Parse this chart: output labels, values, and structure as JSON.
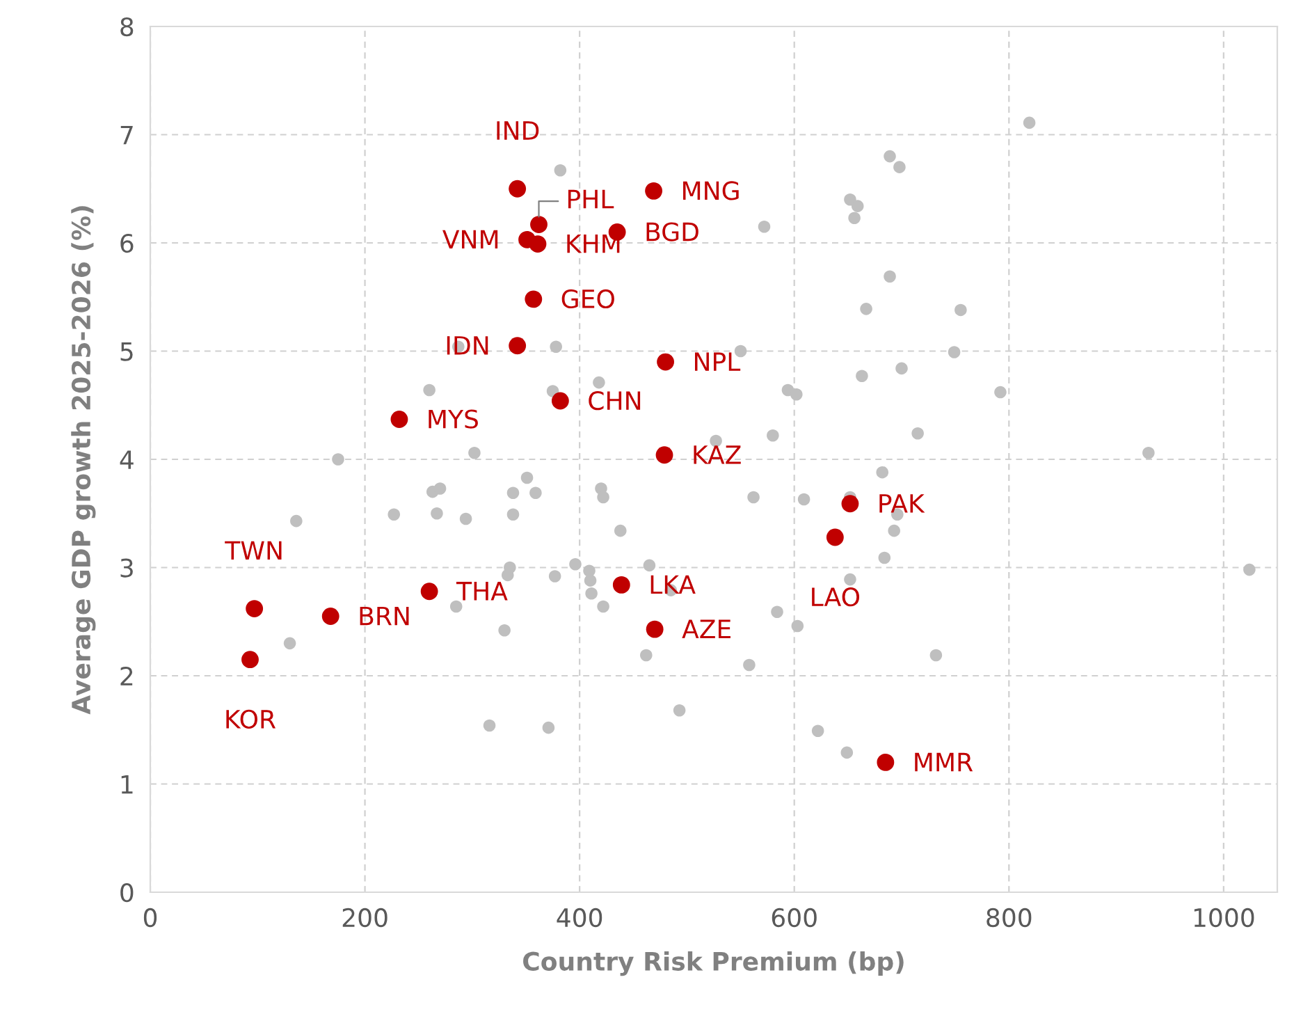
{
  "chart_data": {
    "type": "scatter",
    "xlabel": "Country Risk Premium (bp)",
    "ylabel": "Average GDP growth 2025-2026 (%)",
    "xlim": [
      0,
      1050
    ],
    "ylim": [
      0,
      8
    ],
    "xticks": [
      0,
      200,
      400,
      600,
      800,
      1000
    ],
    "yticks": [
      0,
      1,
      2,
      3,
      4,
      5,
      6,
      7,
      8
    ],
    "grid": true,
    "marker": "circle",
    "legend": false,
    "series": [
      {
        "color": "#bfbfbf",
        "x": [
          382,
          287,
          378,
          260,
          418,
          375,
          302,
          175,
          136,
          227,
          263,
          270,
          267,
          294,
          338,
          351,
          359,
          338,
          420,
          422,
          438,
          396,
          335,
          333,
          377,
          409,
          410,
          411,
          422,
          465,
          485,
          285,
          330,
          130,
          462,
          316,
          371,
          493,
          819,
          689,
          698,
          652,
          659,
          656,
          572,
          689,
          667,
          755,
          550,
          749,
          700,
          663,
          594,
          602,
          792,
          715,
          580,
          527,
          930,
          682,
          562,
          609,
          652,
          696,
          693,
          684,
          652,
          1024,
          584,
          603,
          732,
          558,
          622,
          649
        ],
        "values": [
          6.67,
          5.04,
          5.04,
          4.64,
          4.71,
          4.63,
          4.06,
          4.0,
          3.43,
          3.49,
          3.7,
          3.73,
          3.5,
          3.45,
          3.69,
          3.83,
          3.69,
          3.49,
          3.73,
          3.65,
          3.34,
          3.03,
          3.0,
          2.93,
          2.92,
          2.97,
          2.88,
          2.76,
          2.64,
          3.02,
          2.79,
          2.64,
          2.42,
          2.3,
          2.19,
          1.54,
          1.52,
          1.68,
          7.11,
          6.8,
          6.7,
          6.4,
          6.34,
          6.23,
          6.15,
          5.69,
          5.39,
          5.38,
          5.0,
          4.99,
          4.84,
          4.77,
          4.64,
          4.6,
          4.62,
          4.24,
          4.22,
          4.17,
          4.06,
          3.88,
          3.65,
          3.63,
          3.65,
          3.49,
          3.34,
          3.09,
          2.89,
          2.98,
          2.59,
          2.46,
          2.19,
          2.1,
          1.49,
          1.29
        ]
      },
      {
        "color": "#c00000",
        "x": [
          342,
          362,
          351,
          361,
          435,
          469,
          357,
          342,
          480,
          382,
          232,
          479,
          97,
          93,
          168,
          260,
          439,
          470,
          652,
          638,
          685
        ],
        "values": [
          6.5,
          6.17,
          6.03,
          5.99,
          6.1,
          6.48,
          5.48,
          5.05,
          4.9,
          4.54,
          4.37,
          4.04,
          2.62,
          2.15,
          2.55,
          2.78,
          2.84,
          2.43,
          3.59,
          3.28,
          1.2
        ]
      }
    ],
    "annotations": [
      {
        "text": "IND",
        "x": 342,
        "y": 6.5
      },
      {
        "text": "PHL",
        "x": 362,
        "y": 6.17
      },
      {
        "text": "VNM",
        "x": 351,
        "y": 6.03
      },
      {
        "text": "KHM",
        "x": 361,
        "y": 5.99
      },
      {
        "text": "BGD",
        "x": 435,
        "y": 6.1
      },
      {
        "text": "MNG",
        "x": 469,
        "y": 6.48
      },
      {
        "text": "GEO",
        "x": 357,
        "y": 5.48
      },
      {
        "text": "IDN",
        "x": 342,
        "y": 5.05
      },
      {
        "text": "NPL",
        "x": 480,
        "y": 4.9
      },
      {
        "text": "CHN",
        "x": 382,
        "y": 4.54
      },
      {
        "text": "MYS",
        "x": 232,
        "y": 4.37
      },
      {
        "text": "KAZ",
        "x": 479,
        "y": 4.04
      },
      {
        "text": "TWN",
        "x": 97,
        "y": 2.62
      },
      {
        "text": "KOR",
        "x": 93,
        "y": 2.15
      },
      {
        "text": "BRN",
        "x": 168,
        "y": 2.55
      },
      {
        "text": "THA",
        "x": 260,
        "y": 2.78
      },
      {
        "text": "LKA",
        "x": 439,
        "y": 2.84
      },
      {
        "text": "AZE",
        "x": 470,
        "y": 2.43
      },
      {
        "text": "PAK",
        "x": 652,
        "y": 3.59
      },
      {
        "text": "LAO",
        "x": 638,
        "y": 3.28
      },
      {
        "text": "MMR",
        "x": 685,
        "y": 1.2
      }
    ]
  }
}
